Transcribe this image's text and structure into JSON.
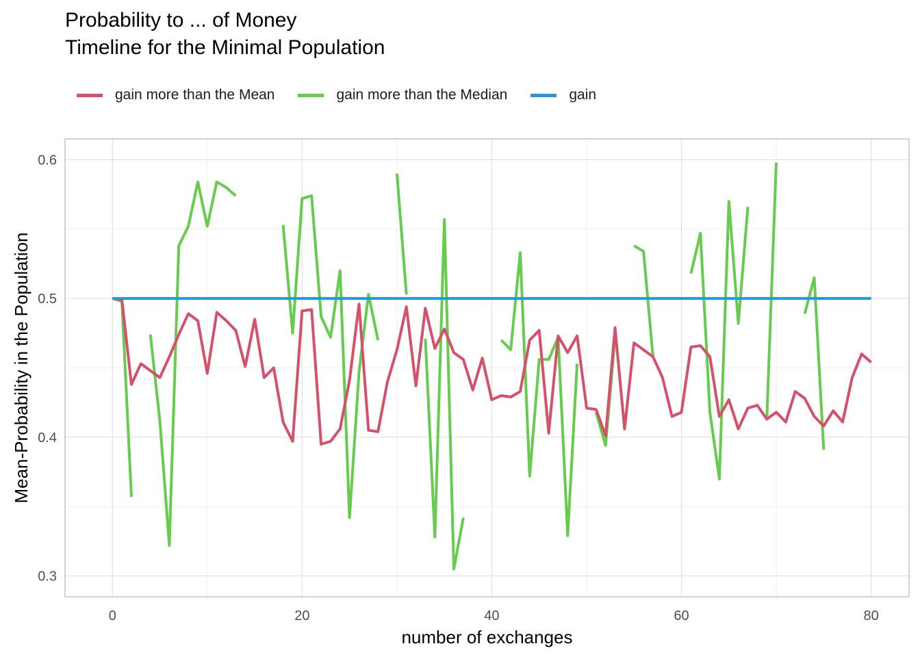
{
  "chart_data": {
    "type": "line",
    "title_line1": "Probability to ... of Money",
    "title_line2": "Timeline for the Minimal Population",
    "xlabel": "number of exchanges",
    "ylabel": "Mean-Probability in the Population",
    "xlim": [
      -5,
      84
    ],
    "ylim": [
      0.285,
      0.615
    ],
    "x_ticks": [
      0,
      20,
      40,
      60,
      80
    ],
    "y_ticks": [
      0.3,
      0.4,
      0.5,
      0.6
    ],
    "y_tick_labels": [
      "0.3",
      "0.4",
      "0.5",
      "0.6"
    ],
    "grid": true,
    "legend_position": "top-left",
    "series": [
      {
        "name": "gain more than the Mean",
        "color": "#d6506a",
        "values": [
          [
            0,
            0.5
          ],
          [
            1,
            0.499
          ],
          [
            2,
            0.438
          ],
          [
            3,
            0.453
          ],
          [
            4,
            0.448
          ],
          [
            5,
            0.443
          ],
          [
            6,
            0.458
          ],
          [
            7,
            0.474
          ],
          [
            8,
            0.489
          ],
          [
            9,
            0.484
          ],
          [
            10,
            0.446
          ],
          [
            11,
            0.49
          ],
          [
            12,
            0.484
          ],
          [
            13,
            0.477
          ],
          [
            14,
            0.451
          ],
          [
            15,
            0.485
          ],
          [
            16,
            0.443
          ],
          [
            17,
            0.45
          ],
          [
            18,
            0.411
          ],
          [
            19,
            0.397
          ],
          [
            20,
            0.491
          ],
          [
            21,
            0.492
          ],
          [
            22,
            0.395
          ],
          [
            23,
            0.397
          ],
          [
            24,
            0.406
          ],
          [
            25,
            0.441
          ],
          [
            26,
            0.496
          ],
          [
            27,
            0.405
          ],
          [
            28,
            0.404
          ],
          [
            29,
            0.44
          ],
          [
            30,
            0.463
          ],
          [
            31,
            0.494
          ],
          [
            32,
            0.437
          ],
          [
            33,
            0.493
          ],
          [
            34,
            0.464
          ],
          [
            35,
            0.478
          ],
          [
            36,
            0.461
          ],
          [
            37,
            0.456
          ],
          [
            38,
            0.434
          ],
          [
            39,
            0.457
          ],
          [
            40,
            0.427
          ],
          [
            41,
            0.43
          ],
          [
            42,
            0.429
          ],
          [
            43,
            0.433
          ],
          [
            44,
            0.47
          ],
          [
            45,
            0.477
          ],
          [
            46,
            0.403
          ],
          [
            47,
            0.473
          ],
          [
            48,
            0.461
          ],
          [
            49,
            0.473
          ],
          [
            50,
            0.421
          ],
          [
            51,
            0.42
          ],
          [
            52,
            0.401
          ],
          [
            53,
            0.479
          ],
          [
            54,
            0.406
          ],
          [
            55,
            0.468
          ],
          [
            56,
            0.463
          ],
          [
            57,
            0.458
          ],
          [
            58,
            0.443
          ],
          [
            59,
            0.415
          ],
          [
            60,
            0.418
          ],
          [
            61,
            0.465
          ],
          [
            62,
            0.466
          ],
          [
            63,
            0.458
          ],
          [
            64,
            0.415
          ],
          [
            65,
            0.427
          ],
          [
            66,
            0.406
          ],
          [
            67,
            0.421
          ],
          [
            68,
            0.423
          ],
          [
            69,
            0.413
          ],
          [
            70,
            0.418
          ],
          [
            71,
            0.411
          ],
          [
            72,
            0.433
          ],
          [
            73,
            0.428
          ],
          [
            74,
            0.415
          ],
          [
            75,
            0.408
          ],
          [
            76,
            0.419
          ],
          [
            77,
            0.411
          ],
          [
            78,
            0.443
          ],
          [
            79,
            0.46
          ],
          [
            80,
            0.454
          ]
        ]
      },
      {
        "name": "gain more than the Median",
        "color": "#66cc4d",
        "segments": [
          [
            [
              0,
              0.5
            ],
            [
              1,
              0.498
            ],
            [
              2,
              0.357
            ]
          ],
          [
            [
              4,
              0.474
            ],
            [
              5,
              0.412
            ],
            [
              6,
              0.322
            ],
            [
              7,
              0.538
            ],
            [
              8,
              0.552
            ],
            [
              9,
              0.584
            ],
            [
              10,
              0.552
            ],
            [
              11,
              0.584
            ],
            [
              12,
              0.58
            ],
            [
              13,
              0.574
            ]
          ],
          [
            [
              18,
              0.553
            ],
            [
              19,
              0.475
            ],
            [
              20,
              0.572
            ],
            [
              21,
              0.574
            ],
            [
              22,
              0.487
            ],
            [
              23,
              0.472
            ],
            [
              24,
              0.52
            ],
            [
              25,
              0.342
            ],
            [
              26,
              0.447
            ],
            [
              27,
              0.503
            ],
            [
              28,
              0.47
            ]
          ],
          [
            [
              30,
              0.59
            ],
            [
              31,
              0.503
            ]
          ],
          [
            [
              33,
              0.471
            ],
            [
              34,
              0.328
            ],
            [
              35,
              0.557
            ],
            [
              36,
              0.305
            ],
            [
              37,
              0.342
            ]
          ],
          [
            [
              41,
              0.47
            ],
            [
              42,
              0.463
            ],
            [
              43,
              0.533
            ],
            [
              44,
              0.372
            ],
            [
              45,
              0.456
            ],
            [
              46,
              0.456
            ],
            [
              47,
              0.472
            ],
            [
              48,
              0.329
            ],
            [
              49,
              0.453
            ]
          ],
          [
            [
              51,
              0.418
            ],
            [
              52,
              0.394
            ],
            [
              53,
              0.472
            ]
          ],
          [
            [
              55,
              0.538
            ],
            [
              56,
              0.534
            ],
            [
              57,
              0.458
            ]
          ],
          [
            [
              61,
              0.518
            ],
            [
              62,
              0.547
            ],
            [
              63,
              0.418
            ],
            [
              64,
              0.37
            ],
            [
              65,
              0.57
            ],
            [
              66,
              0.482
            ],
            [
              67,
              0.566
            ]
          ],
          [
            [
              69,
              0.413
            ],
            [
              70,
              0.598
            ]
          ],
          [
            [
              73,
              0.489
            ],
            [
              74,
              0.515
            ],
            [
              75,
              0.391
            ]
          ]
        ]
      },
      {
        "name": "gain",
        "color": "#2596d8",
        "values": [
          [
            0,
            0.5
          ],
          [
            80,
            0.5
          ]
        ]
      }
    ]
  }
}
